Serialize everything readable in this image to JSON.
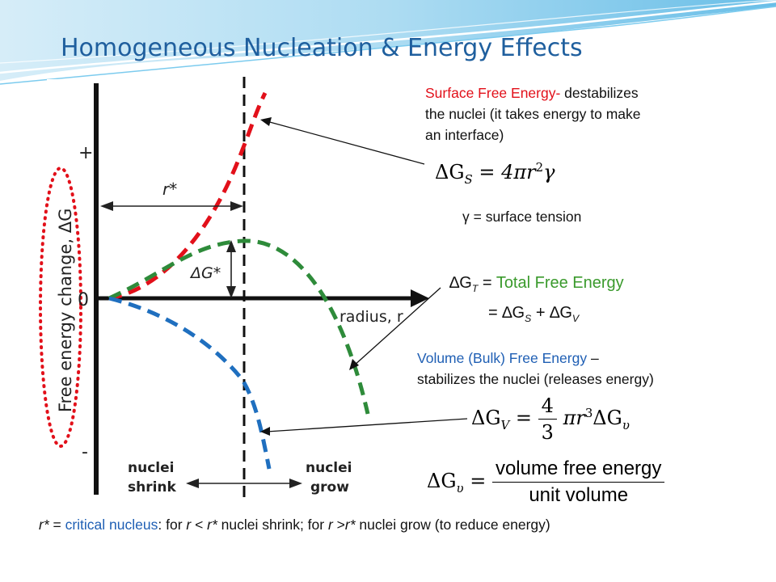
{
  "title": "Homogeneous Nucleation & Energy Effects",
  "diagram": {
    "y_axis_label": "Free energy change, ΔG",
    "plus": "+",
    "zero": "0",
    "minus": "-",
    "x_axis_label": "radius, r",
    "r_star": "r*",
    "delta_g_star": "ΔG*",
    "shrink_line1": "nuclei",
    "shrink_line2": "shrink",
    "grow_line1": "nuclei",
    "grow_line2": "grow"
  },
  "surface": {
    "label": "Surface Free Energy-",
    "line1_rest": " destabilizes",
    "line2": "the nuclei (it takes energy to make",
    "line3": "an interface)",
    "eq_lhs": "ΔG",
    "eq_sub": "S",
    "eq_rhs": "= 4πr",
    "eq_sup": "2",
    "eq_gamma": "γ",
    "gamma_def": "γ = surface tension"
  },
  "total": {
    "lhs": "∆G",
    "lhs_sub": "T",
    "eq": " = ",
    "label": "Total Free Energy",
    "line2_a": "= ∆G",
    "line2_sub_s": "S",
    "line2_plus": " + ∆G",
    "line2_sub_v": "V"
  },
  "volume": {
    "label": "Volume (Bulk) Free Energy",
    "dash": " –",
    "line2": "stabilizes the nuclei (releases energy)",
    "eq_lhs": "ΔG",
    "eq_sub": "V",
    "eq_eq": "=",
    "frac_num": "4",
    "frac_den": "3",
    "eq_rhs": "πr",
    "eq_sup": "3",
    "eq_tail": "ΔG",
    "eq_tail_sub": "υ",
    "def_lhs": "ΔG",
    "def_sub": "υ",
    "def_eq": "=",
    "def_num": "volume free energy",
    "def_den": "unit volume"
  },
  "footer": {
    "a": "r*",
    "b": " = ",
    "c": "critical nucleus",
    "d": ": for ",
    "e": "r",
    "f": " < ",
    "g": "r*",
    "h": " nuclei shrink; for ",
    "i": "r",
    "j": " >",
    "k": "r*",
    "l": " nuclei grow (to reduce energy)"
  },
  "colors": {
    "title": "#1f5f9e",
    "surface_curve": "#e2101a",
    "total_curve": "#2e8b3a",
    "volume_curve": "#1f6fbf",
    "circle": "#e2101a",
    "header_wave": "#5db9e6"
  }
}
